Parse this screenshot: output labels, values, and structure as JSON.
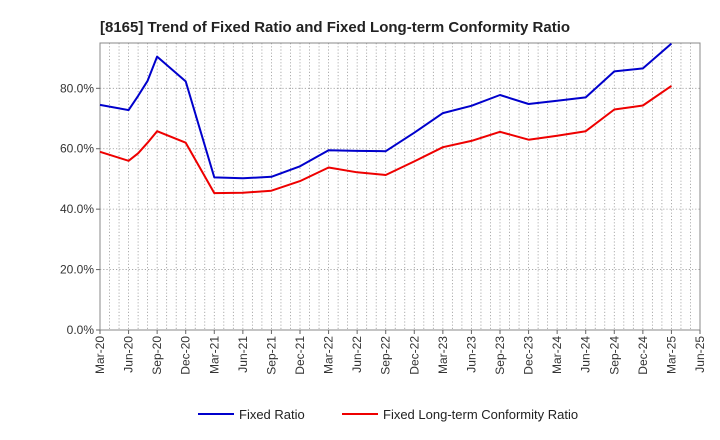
{
  "chart_data": {
    "type": "line",
    "title": "[8165]  Trend of Fixed Ratio and Fixed Long-term Conformity Ratio",
    "xlabel": "",
    "ylabel": "",
    "ylim": [
      0,
      95
    ],
    "y_ticks": [
      "0.0%",
      "20.0%",
      "40.0%",
      "60.0%",
      "80.0%"
    ],
    "y_tick_values": [
      0,
      20,
      40,
      60,
      80
    ],
    "grid": true,
    "legend_position": "bottom",
    "categories": [
      "Mar-20",
      "Jun-20",
      "Sep-20",
      "Dec-20",
      "Mar-21",
      "Jun-21",
      "Sep-21",
      "Dec-21",
      "Mar-22",
      "Jun-22",
      "Sep-22",
      "Dec-22",
      "Mar-23",
      "Jun-23",
      "Sep-23",
      "Dec-23",
      "Mar-24",
      "Jun-24",
      "Sep-24",
      "Dec-24",
      "Mar-25",
      "Jun-25"
    ],
    "series": [
      {
        "name": "Fixed Ratio",
        "color": "#0000cc",
        "x": [
          "Mar-20",
          "Jun-20",
          "Jul-20",
          "Aug-20",
          "Sep-20",
          "Dec-20",
          "Mar-21",
          "Jun-21",
          "Sep-21",
          "Dec-21",
          "Mar-22",
          "Jun-22",
          "Sep-22",
          "Dec-22",
          "Mar-23",
          "Jun-23",
          "Sep-23",
          "Dec-23",
          "Mar-24",
          "Jun-24",
          "Sep-24",
          "Dec-24",
          "Mar-25"
        ],
        "values": [
          74.5,
          72.8,
          77.5,
          82.5,
          90.5,
          82.3,
          50.5,
          50.2,
          50.7,
          54.2,
          59.5,
          59.3,
          59.2,
          65.3,
          71.8,
          74.2,
          77.8,
          74.8,
          75.9,
          77.0,
          85.6,
          86.6,
          94.8
        ]
      },
      {
        "name": "Fixed Long-term Conformity Ratio",
        "color": "#ee0000",
        "x": [
          "Mar-20",
          "Jun-20",
          "Jul-20",
          "Aug-20",
          "Sep-20",
          "Dec-20",
          "Mar-21",
          "Jun-21",
          "Sep-21",
          "Dec-21",
          "Mar-22",
          "Jun-22",
          "Sep-22",
          "Dec-22",
          "Mar-23",
          "Jun-23",
          "Sep-23",
          "Dec-23",
          "Mar-24",
          "Jun-24",
          "Sep-24",
          "Dec-24",
          "Mar-25"
        ],
        "values": [
          59.0,
          56.0,
          58.5,
          62.0,
          65.8,
          62.0,
          45.3,
          45.4,
          46.1,
          49.3,
          53.8,
          52.2,
          51.3,
          55.8,
          60.5,
          62.6,
          65.6,
          63.0,
          64.3,
          65.8,
          73.0,
          74.3,
          80.8
        ]
      }
    ]
  }
}
